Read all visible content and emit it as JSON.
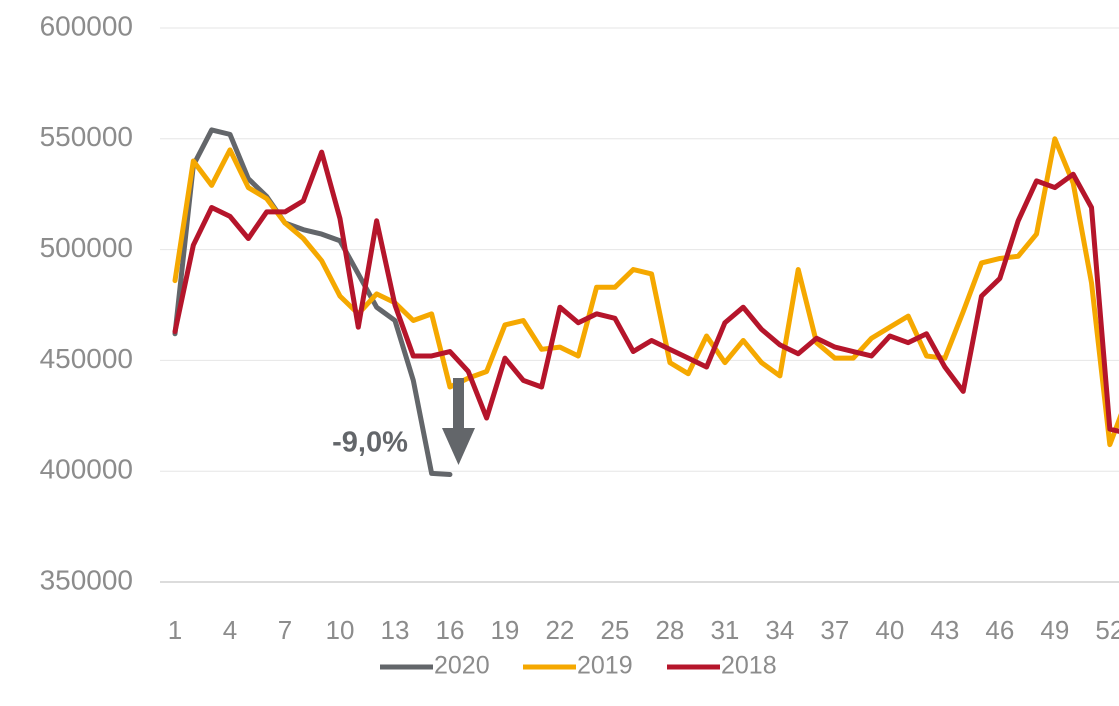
{
  "chart_data": {
    "type": "line",
    "x": [
      1,
      2,
      3,
      4,
      5,
      6,
      7,
      8,
      9,
      10,
      11,
      12,
      13,
      14,
      15,
      16,
      17,
      18,
      19,
      20,
      21,
      22,
      23,
      24,
      25,
      26,
      27,
      28,
      29,
      30,
      31,
      32,
      33,
      34,
      35,
      36,
      37,
      38,
      39,
      40,
      41,
      42,
      43,
      44,
      45,
      46,
      47,
      48,
      49,
      50,
      51,
      52,
      53
    ],
    "xlim": [
      1,
      53
    ],
    "xticks": [
      1,
      4,
      7,
      10,
      13,
      16,
      19,
      22,
      25,
      28,
      31,
      34,
      37,
      40,
      43,
      46,
      49,
      52
    ],
    "ylim": [
      350000,
      600000
    ],
    "yticks": [
      350000,
      400000,
      450000,
      500000,
      550000,
      600000
    ],
    "grid": true,
    "legend": "bottom",
    "annotation": "-9,0%",
    "series": [
      {
        "name": "2020",
        "color": "#63666a",
        "values": [
          462000,
          538000,
          554000,
          552000,
          532000,
          524000,
          512000,
          509000,
          507000,
          504000,
          489000,
          474000,
          468000,
          441000,
          399000,
          398500,
          null,
          null,
          null,
          null,
          null,
          null,
          null,
          null,
          null,
          null,
          null,
          null,
          null,
          null,
          null,
          null,
          null,
          null,
          null,
          null,
          null,
          null,
          null,
          null,
          null,
          null,
          null,
          null,
          null,
          null,
          null,
          null,
          null,
          null,
          null,
          null,
          null
        ]
      },
      {
        "name": "2019",
        "color": "#f5a800",
        "values": [
          486000,
          540000,
          529000,
          545000,
          528000,
          523000,
          512000,
          505000,
          495000,
          479000,
          471000,
          480000,
          476000,
          468000,
          471000,
          438000,
          442000,
          445000,
          466000,
          468000,
          455000,
          456000,
          452000,
          483000,
          483000,
          491000,
          489000,
          449000,
          444000,
          461000,
          449000,
          459000,
          449000,
          443000,
          491000,
          458000,
          451000,
          451000,
          460000,
          465000,
          470000,
          452000,
          451000,
          472000,
          494000,
          496000,
          497000,
          507000,
          550000,
          530000,
          485000,
          412000,
          434000
        ]
      },
      {
        "name": "2018",
        "color": "#b5152b",
        "values": [
          463000,
          502000,
          519000,
          515000,
          505000,
          517000,
          517000,
          522000,
          544000,
          514000,
          465000,
          513000,
          475000,
          452000,
          452000,
          454000,
          445000,
          424000,
          451000,
          441000,
          438000,
          474000,
          467000,
          471000,
          469000,
          454000,
          459000,
          455000,
          451000,
          447000,
          467000,
          474000,
          464000,
          457000,
          453000,
          460000,
          456000,
          454000,
          452000,
          461000,
          458000,
          462000,
          447000,
          436000,
          479000,
          487000,
          513000,
          531000,
          528000,
          534000,
          519000,
          419000,
          417000
        ]
      }
    ]
  }
}
